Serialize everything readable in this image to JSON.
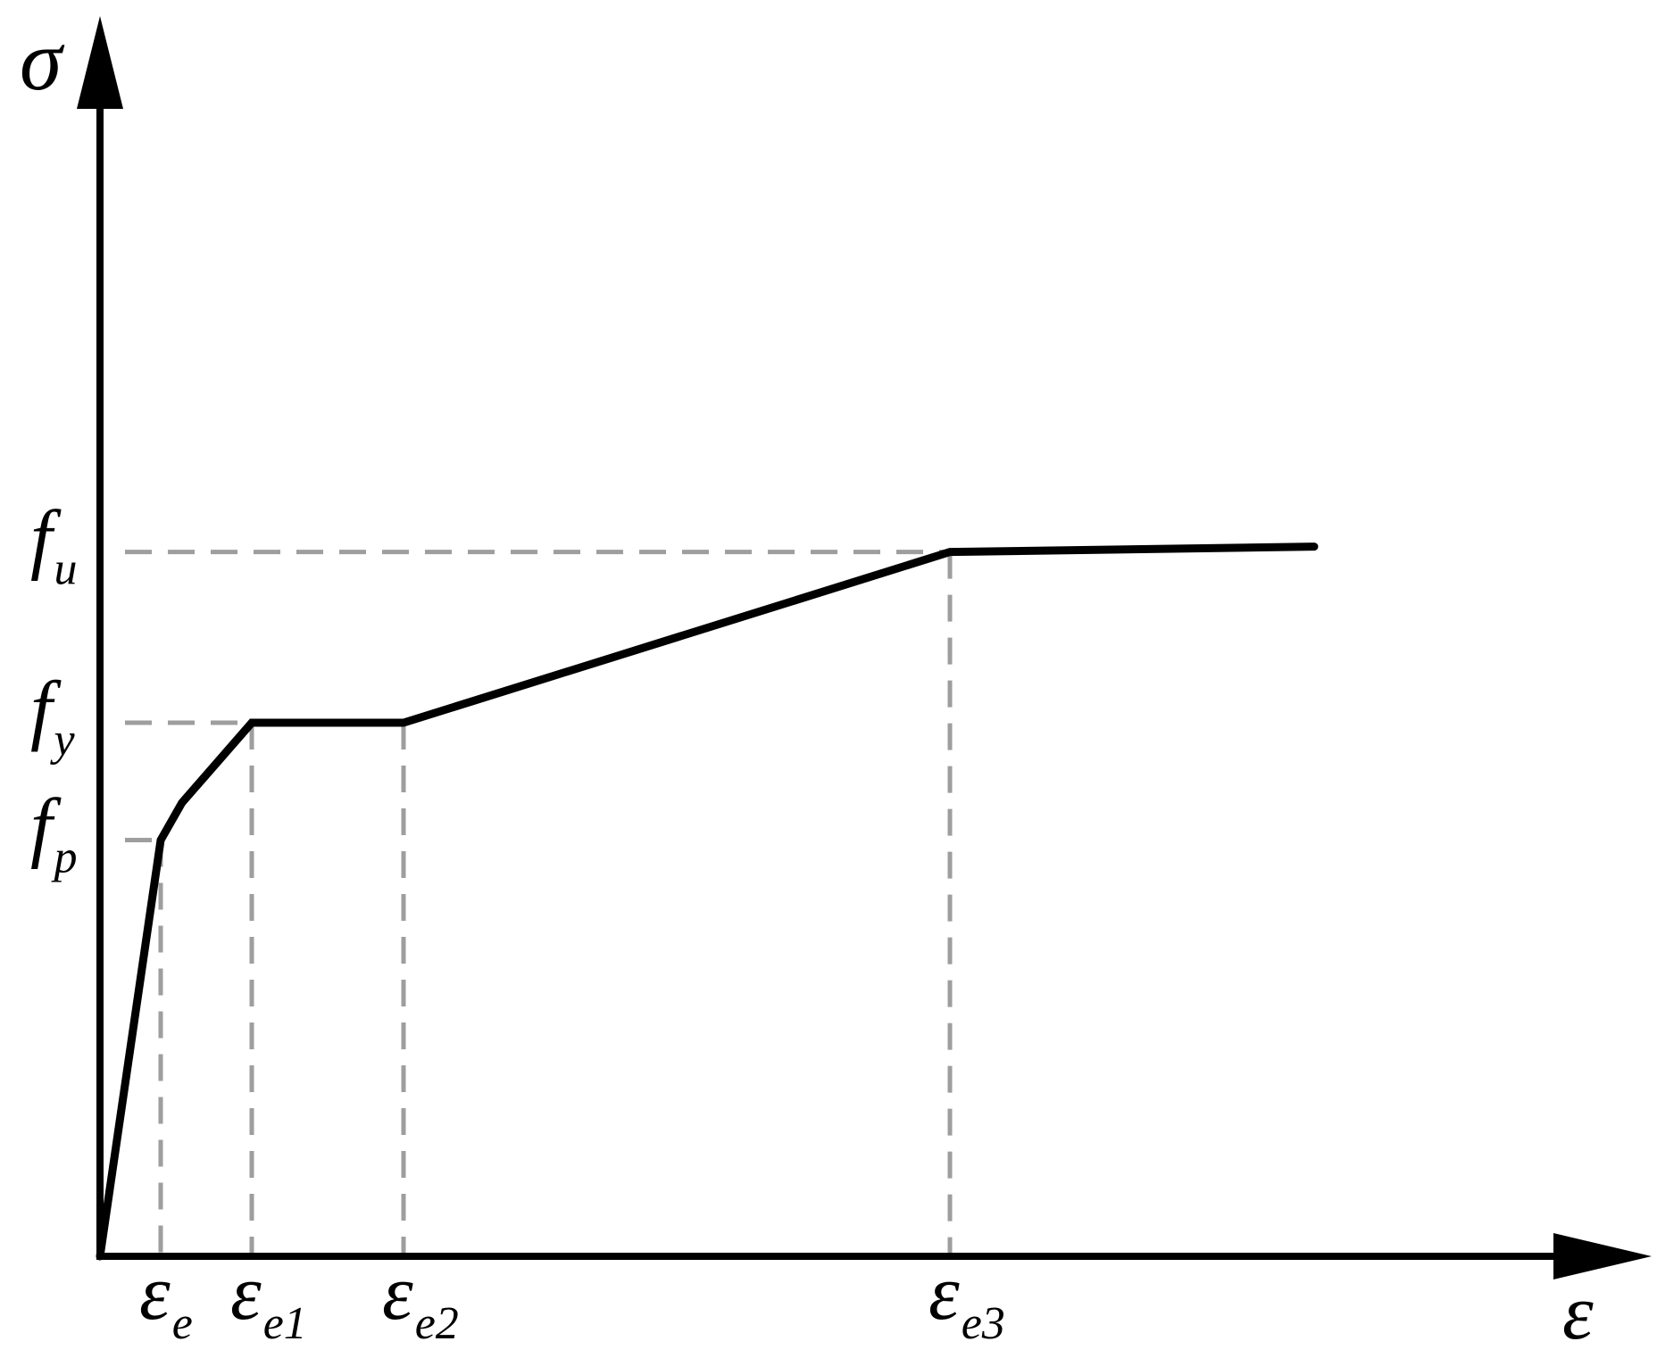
{
  "chart_data": {
    "type": "line",
    "title": "",
    "xlabel": "ε",
    "ylabel": "σ",
    "grid": false,
    "legend": "none",
    "colors": {
      "curve": "#000000",
      "guide": "#9e9e9e",
      "axis": "#000000"
    },
    "x_ticks": [
      {
        "main": "ε",
        "sub": "e",
        "x": 1.0
      },
      {
        "main": "ε",
        "sub": "e1",
        "x": 2.5
      },
      {
        "main": "ε",
        "sub": "e2",
        "x": 5.0
      },
      {
        "main": "ε",
        "sub": "e3",
        "x": 14.0
      }
    ],
    "y_ticks": [
      {
        "main": "f",
        "sub": "p",
        "y": 0.78
      },
      {
        "main": "f",
        "sub": "y",
        "y": 1.0
      },
      {
        "main": "f",
        "sub": "u",
        "y": 1.32
      }
    ],
    "xlim": [
      0,
      22.5
    ],
    "ylim": [
      0,
      1.7
    ],
    "series": [
      {
        "x": [
          0,
          1.0,
          1.35,
          2.5,
          5.0,
          14.0,
          20.0
        ],
        "y": [
          0,
          0.78,
          0.85,
          1.0,
          1.0,
          1.32,
          1.33
        ]
      }
    ],
    "guides": [
      {
        "x": 1.0,
        "y": 0.78
      },
      {
        "x": 2.5,
        "y": 1.0
      },
      {
        "x": 5.0,
        "y": 1.0
      },
      {
        "x": 14.0,
        "y": 1.32
      }
    ]
  }
}
